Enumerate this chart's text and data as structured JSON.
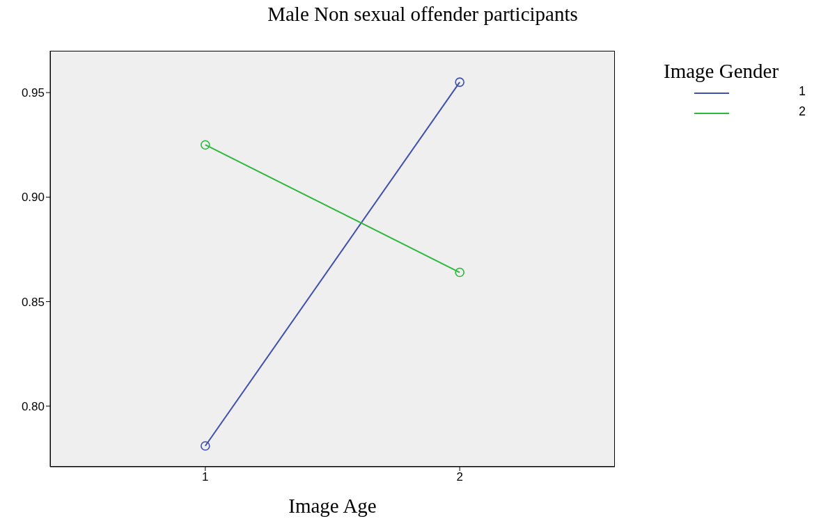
{
  "chart_data": {
    "type": "line",
    "title": "Male Non sexual offender participants",
    "xlabel": "Image Age",
    "legend_title": "Image Gender",
    "x": [
      1,
      2
    ],
    "xlim": [
      0.39,
      2.61
    ],
    "xticks": [
      1,
      2
    ],
    "ylim": [
      0.771,
      0.97
    ],
    "yticks": [
      {
        "value": 0.8,
        "label": "0.80"
      },
      {
        "value": 0.85,
        "label": "0.85"
      },
      {
        "value": 0.9,
        "label": "0.90"
      },
      {
        "value": 0.95,
        "label": "0.95"
      }
    ],
    "series": [
      {
        "name": "1",
        "color": "#3f4fb0",
        "values": [
          0.781,
          0.955
        ]
      },
      {
        "name": "2",
        "color": "#2cb83c",
        "values": [
          0.925,
          0.864
        ]
      }
    ],
    "marker": "circle",
    "grid": false,
    "legend": "top right"
  }
}
